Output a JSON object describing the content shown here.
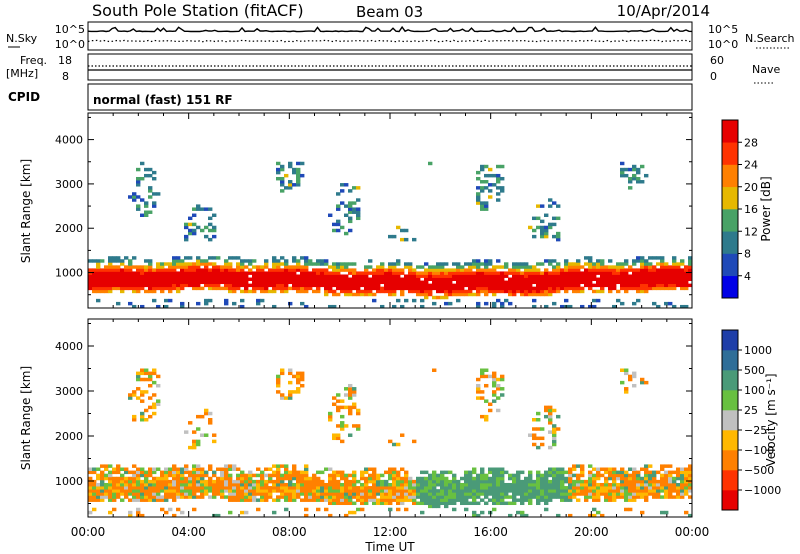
{
  "header": {
    "station": "South Pole Station (fitACF)",
    "beam": "Beam 03",
    "date": "10/Apr/2014"
  },
  "strip_panels": {
    "nsky_label": "N.Sky",
    "nsky_top_tick": "10^5",
    "nsky_bottom_tick": "10^0",
    "nsearch_label": "N.Search",
    "nsearch_top_tick": "10^5",
    "nsearch_bottom_tick": "10^0",
    "freq_label": "Freq.",
    "freq_unit": "[MHz]",
    "freq_ticks": [
      "18",
      "8"
    ],
    "nave_label": "Nave",
    "nave_ticks": [
      "60",
      "0"
    ],
    "cpid_label": "CPID",
    "cpid_text": "normal (fast) 151 RF"
  },
  "colors": {
    "power": [
      "#0000e6",
      "#1f49b8",
      "#2e7a8c",
      "#48a266",
      "#e6b800",
      "#ff8000",
      "#ff3300",
      "#e60000"
    ],
    "velocity": [
      "#e60000",
      "#ff3300",
      "#ff8000",
      "#ffb800",
      "#c0c0c0",
      "#68c040",
      "#4a9a78",
      "#2f6e98",
      "#1f3ea8"
    ]
  },
  "chart_data": [
    {
      "type": "heatmap",
      "name": "power",
      "ylabel": "Slant Range [km]",
      "xlabel": "",
      "y_ticks": [
        1000,
        2000,
        3000,
        4000
      ],
      "ylim": [
        200,
        4600
      ],
      "x_ticks": [
        "00:00",
        "04:00",
        "08:00",
        "12:00",
        "16:00",
        "20:00",
        "00:00"
      ],
      "xlim_hours": [
        0,
        24
      ],
      "colorbar": {
        "label": "Power [dB]",
        "ticks": [
          "4",
          "8",
          "12",
          "16",
          "20",
          "24",
          "28"
        ],
        "range": [
          0,
          32
        ]
      }
    },
    {
      "type": "heatmap",
      "name": "velocity",
      "ylabel": "Slant Range [km]",
      "xlabel": "Time UT",
      "y_ticks": [
        1000,
        2000,
        3000,
        4000
      ],
      "ylim": [
        200,
        4600
      ],
      "x_ticks": [
        "00:00",
        "04:00",
        "08:00",
        "12:00",
        "16:00",
        "20:00",
        "00:00"
      ],
      "xlim_hours": [
        0,
        24
      ],
      "colorbar": {
        "label": "Velocity [m s⁻¹]",
        "ticks": [
          "1000",
          "500",
          "100",
          "25",
          "−25",
          "−100",
          "−500",
          "−1000"
        ]
      }
    }
  ]
}
